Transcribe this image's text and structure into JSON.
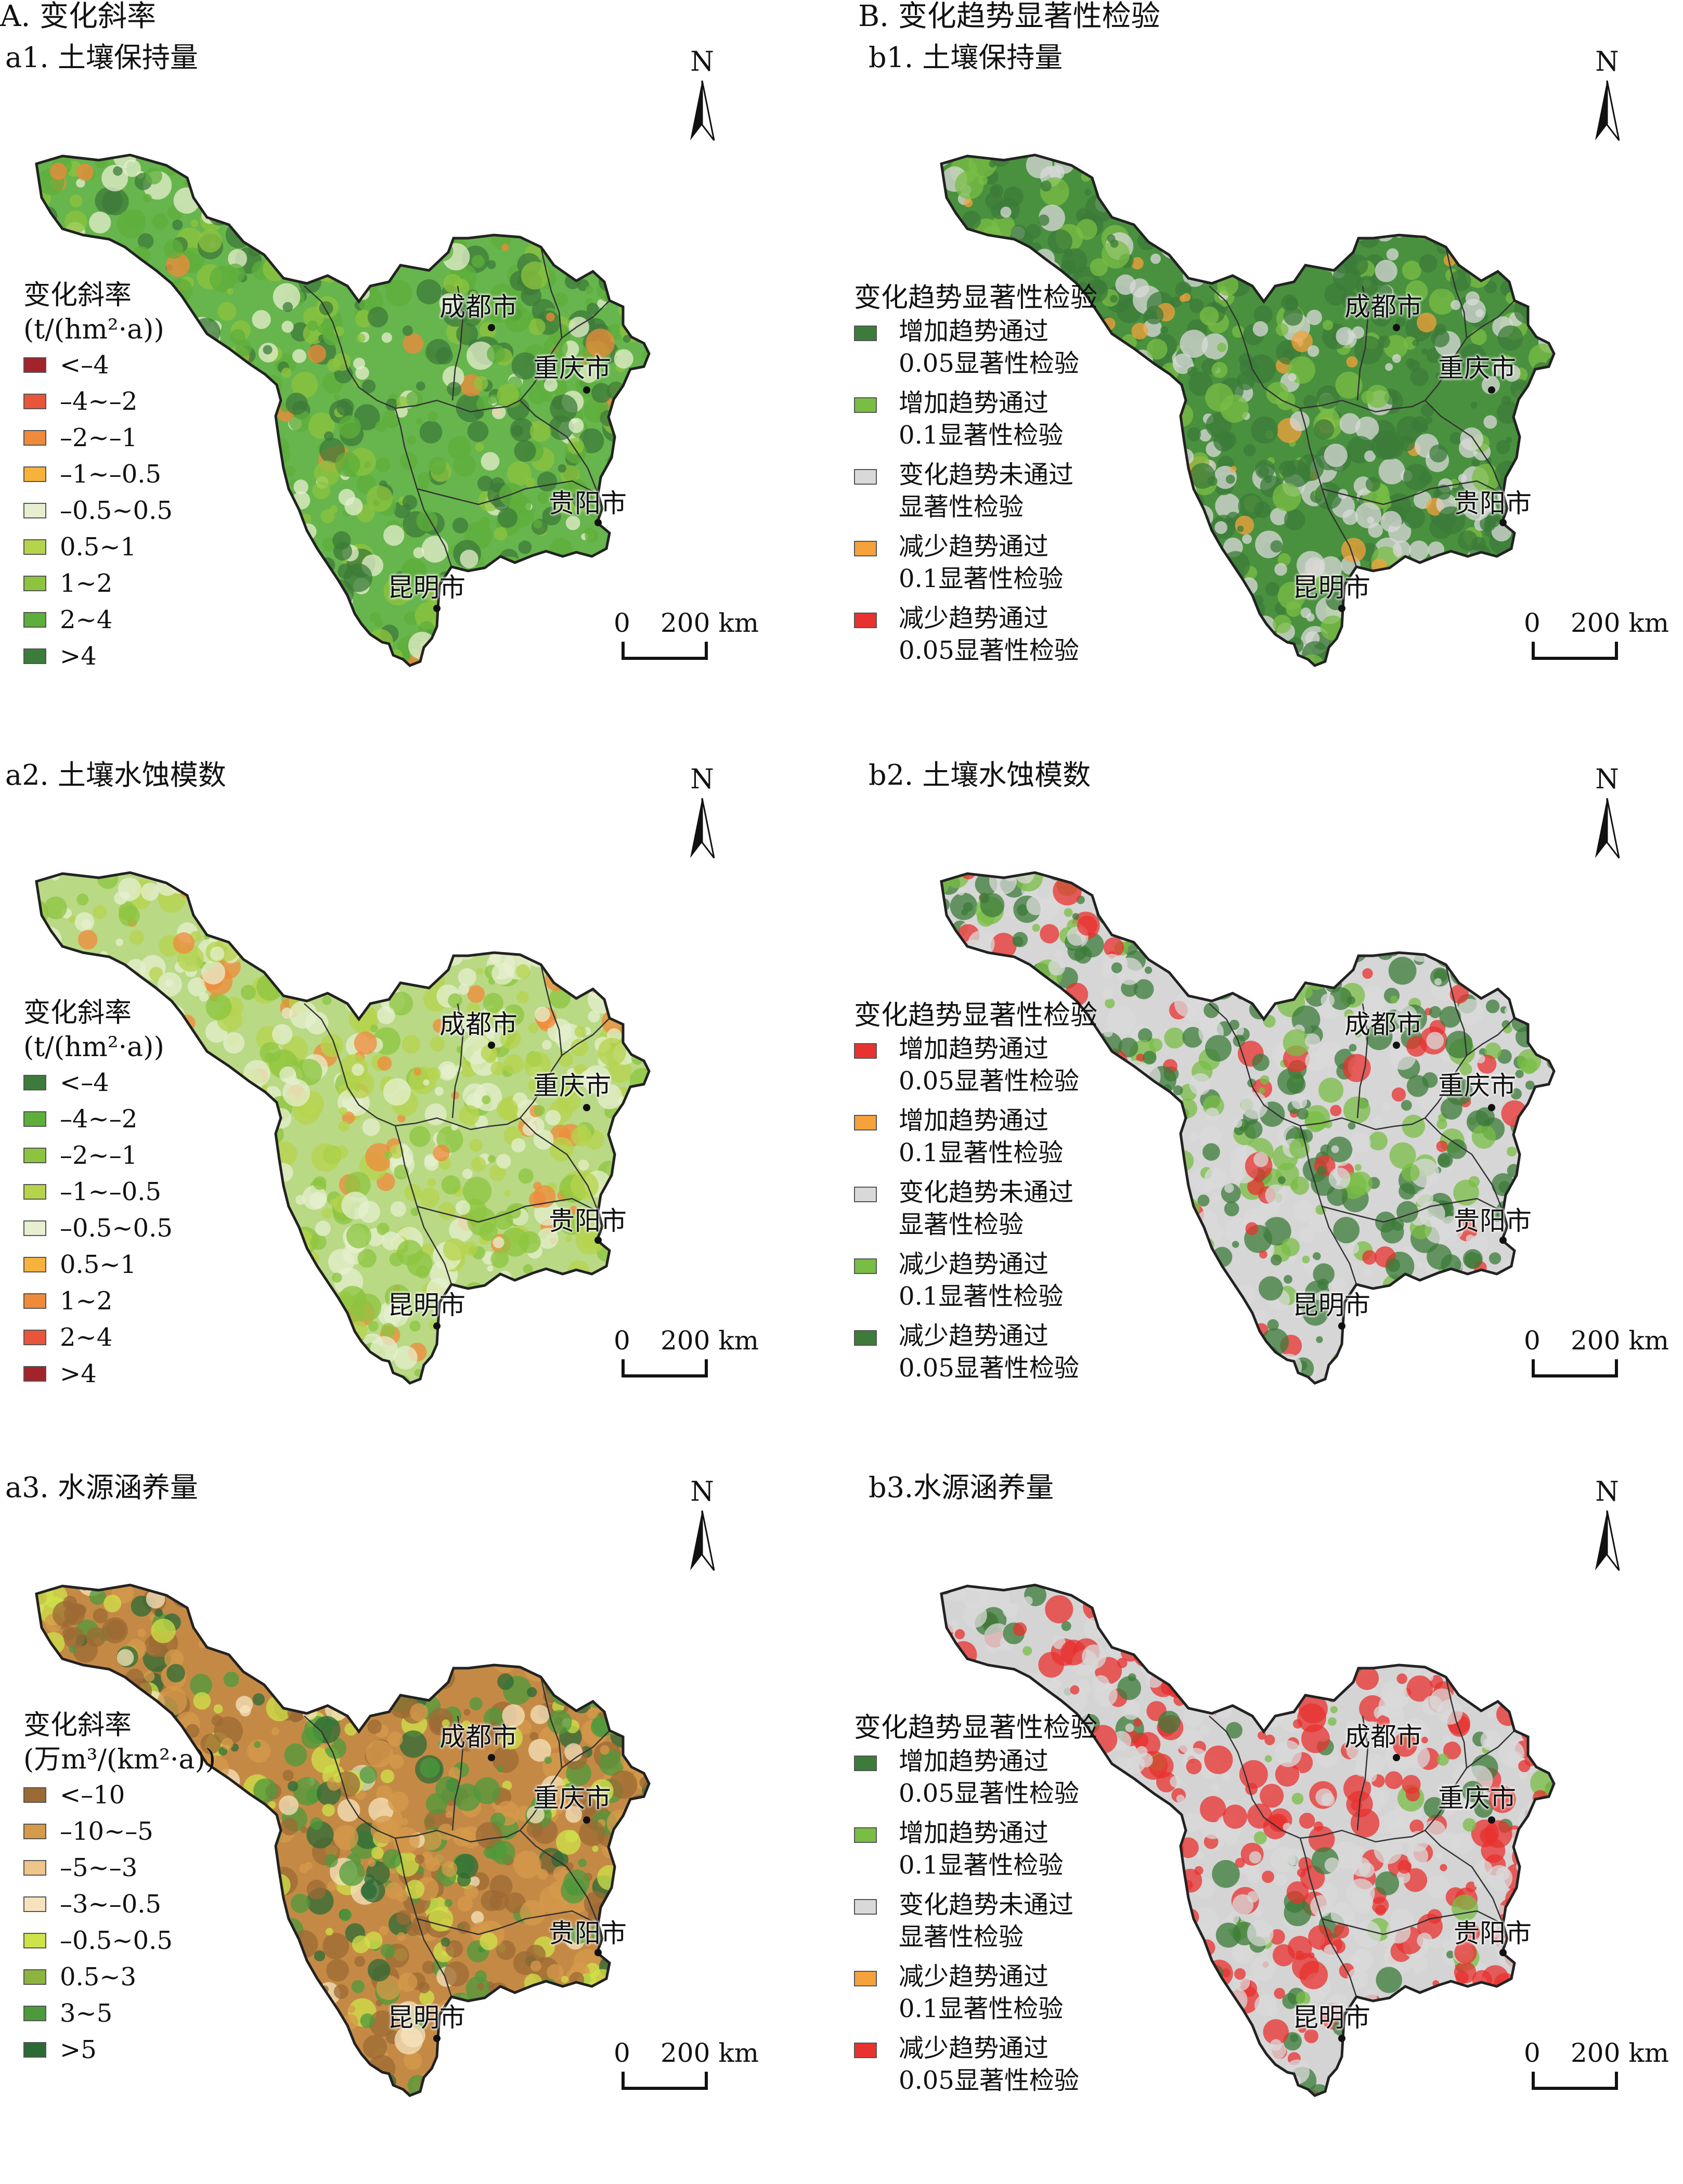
{
  "section_A": "A. 变化斜率",
  "section_B": "B. 变化趋势显著性检验",
  "north_label": "N",
  "scale": {
    "zero": "0",
    "max": "200 km"
  },
  "cities": {
    "chengdu": "成都市",
    "chongqing": "重庆市",
    "guiyang": "贵阳市",
    "kunming": "昆明市"
  },
  "colors": {
    "outline": "#222222",
    "fill_a1": "#67b54d",
    "fill_a2": "#b9d985",
    "fill_a3": "#c48a45",
    "fill_b1": "#49913e",
    "fill_b2": "#d6d6d6",
    "fill_b3": "#d4d4d4"
  },
  "panels": {
    "a1": {
      "title": "a1. 土壤保持量",
      "legend_title": "变化斜率",
      "legend_unit": "(t/(hm²·a))",
      "legend": [
        {
          "label": "<–4",
          "color": "#a3232b"
        },
        {
          "label": "–4~–2",
          "color": "#e9553a"
        },
        {
          "label": "–2~–1",
          "color": "#f08a3b"
        },
        {
          "label": "–1~–0.5",
          "color": "#f7b23c"
        },
        {
          "label": "–0.5~0.5",
          "color": "#e6efcf"
        },
        {
          "label": "0.5~1",
          "color": "#b6d34c"
        },
        {
          "label": "1~2",
          "color": "#8cc43f"
        },
        {
          "label": "2~4",
          "color": "#5daf3b"
        },
        {
          "label": ">4",
          "color": "#3c7b3a"
        }
      ]
    },
    "a2": {
      "title": "a2. 土壤水蚀模数",
      "legend_title": "变化斜率",
      "legend_unit": "(t/(hm²·a))",
      "legend": [
        {
          "label": "<–4",
          "color": "#3c7b3a"
        },
        {
          "label": "–4~–2",
          "color": "#5daf3b"
        },
        {
          "label": "–2~–1",
          "color": "#8cc43f"
        },
        {
          "label": "–1~–0.5",
          "color": "#b6d34c"
        },
        {
          "label": "–0.5~0.5",
          "color": "#e6efcf"
        },
        {
          "label": "0.5~1",
          "color": "#f7b23c"
        },
        {
          "label": "1~2",
          "color": "#f08a3b"
        },
        {
          "label": "2~4",
          "color": "#e9553a"
        },
        {
          "label": ">4",
          "color": "#a3232b"
        }
      ]
    },
    "a3": {
      "title": "a3. 水源涵养量",
      "legend_title": "变化斜率",
      "legend_unit": "(万m³/(km²·a))",
      "legend": [
        {
          "label": "<–10",
          "color": "#9c6a34"
        },
        {
          "label": "–10~–5",
          "color": "#d69a4b"
        },
        {
          "label": "–5~–3",
          "color": "#efc58b"
        },
        {
          "label": "–3~–0.5",
          "color": "#f6e3bd"
        },
        {
          "label": "–0.5~0.5",
          "color": "#cfe24a"
        },
        {
          "label": "0.5~3",
          "color": "#8db43f"
        },
        {
          "label": "3~5",
          "color": "#4d9a3c"
        },
        {
          "label": ">5",
          "color": "#2c6a35"
        }
      ]
    },
    "b1": {
      "title": "b1. 土壤保持量",
      "legend_title": "变化趋势显著性检验",
      "legend": [
        {
          "line1": "增加趋势通过",
          "line2": "0.05显著性检验",
          "color": "#3c7b3a"
        },
        {
          "line1": "增加趋势通过",
          "line2": "0.1显著性检验",
          "color": "#79bd45"
        },
        {
          "line1": "变化趋势未通过",
          "line2": "显著性检验",
          "color": "#d9d9d9"
        },
        {
          "line1": "减少趋势通过",
          "line2": "0.1显著性检验",
          "color": "#f5a23c"
        },
        {
          "line1": "减少趋势通过",
          "line2": "0.05显著性检验",
          "color": "#e8322f"
        }
      ]
    },
    "b2": {
      "title": "b2. 土壤水蚀模数",
      "legend_title": "变化趋势显著性检验",
      "legend": [
        {
          "line1": "增加趋势通过",
          "line2": "0.05显著性检验",
          "color": "#e8322f"
        },
        {
          "line1": "增加趋势通过",
          "line2": "0.1显著性检验",
          "color": "#f5a23c"
        },
        {
          "line1": "变化趋势未通过",
          "line2": "显著性检验",
          "color": "#d9d9d9"
        },
        {
          "line1": "减少趋势通过",
          "line2": "0.1显著性检验",
          "color": "#79bd45"
        },
        {
          "line1": "减少趋势通过",
          "line2": "0.05显著性检验",
          "color": "#3c7b3a"
        }
      ]
    },
    "b3": {
      "title": "b3.水源涵养量",
      "legend_title": "变化趋势显著性检验",
      "legend": [
        {
          "line1": "增加趋势通过",
          "line2": "0.05显著性检验",
          "color": "#3c7b3a"
        },
        {
          "line1": "增加趋势通过",
          "line2": "0.1显著性检验",
          "color": "#79bd45"
        },
        {
          "line1": "变化趋势未通过",
          "line2": "显著性检验",
          "color": "#d9d9d9"
        },
        {
          "line1": "减少趋势通过",
          "line2": "0.1显著性检验",
          "color": "#f5a23c"
        },
        {
          "line1": "减少趋势通过",
          "line2": "0.05显著性检验",
          "color": "#e8322f"
        }
      ]
    }
  }
}
